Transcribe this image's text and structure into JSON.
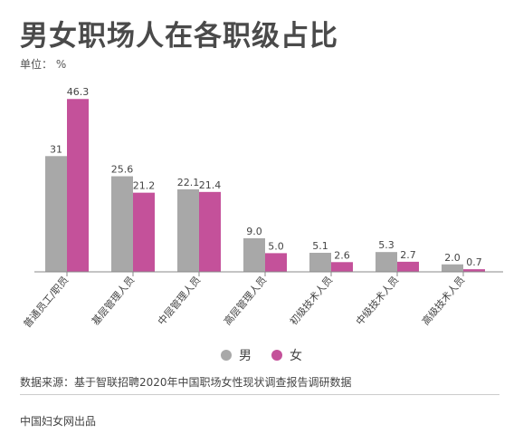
{
  "title": "男女职场人在各职级占比",
  "unit_label": "单位：",
  "unit_value": "%",
  "legend": {
    "male": "男",
    "female": "女"
  },
  "colors": {
    "male": "#a8a8a8",
    "female": "#c4519a"
  },
  "source": "数据来源：基于智联招聘2020年中国职场女性现状调查报告调研数据",
  "credit": "中国妇女网出品",
  "chart_data": {
    "type": "bar",
    "categories": [
      "普通员工/职员",
      "基层管理人员",
      "中层管理人员",
      "高层管理人员",
      "初级技术人员",
      "中级技术人员",
      "高级技术人员"
    ],
    "series": [
      {
        "name": "男",
        "values": [
          31,
          25.6,
          22.1,
          9.0,
          5.1,
          5.3,
          2.0
        ],
        "labels": [
          "31",
          "25.6",
          "22.1",
          "9.0",
          "5.1",
          "5.3",
          "2.0"
        ]
      },
      {
        "name": "女",
        "values": [
          46.3,
          21.2,
          21.4,
          5.0,
          2.6,
          2.7,
          0.7
        ],
        "labels": [
          "46.3",
          "21.2",
          "21.4",
          "5.0",
          "2.6",
          "2.7",
          "0.7"
        ]
      }
    ],
    "ylim": [
      0,
      50
    ],
    "grid": false,
    "legend_position": "bottom"
  }
}
